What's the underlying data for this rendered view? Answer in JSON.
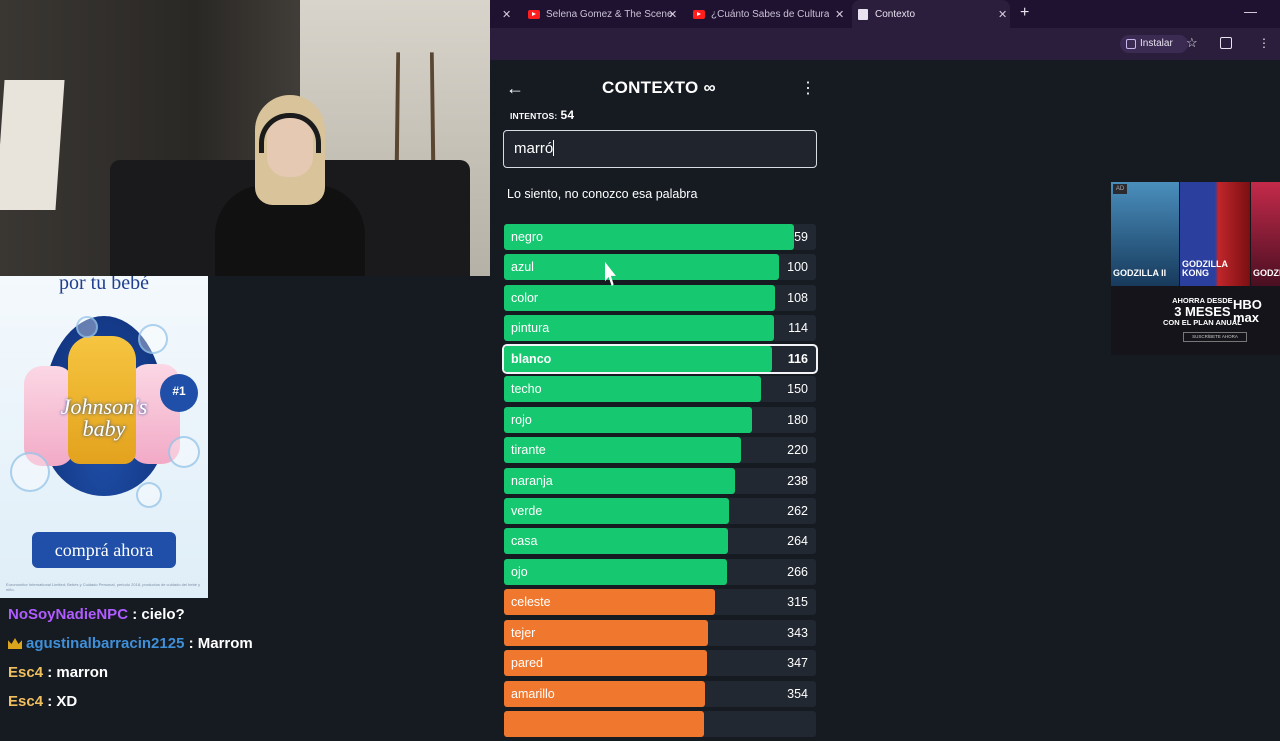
{
  "stream": {
    "ad_left": {
      "tagline": "por tu bebé",
      "brand": "Johnson's baby",
      "badge": "#1",
      "cta": "comprá ahora",
      "fine_print": "Euromonitor International Limited; Bebés y Cuidado Personal, periodo 2018, productos de cuidado del bebé y niño."
    },
    "chat": [
      {
        "user": "NoSoyNadieNPC",
        "text": ": cielo?",
        "color": "#b05cff",
        "badge": false
      },
      {
        "user": "agustinalbarracin2125",
        "text": ": Marrom",
        "color": "#3f8fd9",
        "badge": true
      },
      {
        "user": "Esc4",
        "text": ": marron",
        "color": "#f0c060",
        "badge": false
      },
      {
        "user": "Esc4",
        "text": ": XD",
        "color": "#f0c060",
        "badge": false
      }
    ]
  },
  "browser": {
    "tabs": [
      {
        "title": "Selena Gomez & The Scene - Lo",
        "icon": "youtube-icon",
        "active": false
      },
      {
        "title": "¿Cuánto Sabes de Cultura Gene",
        "icon": "youtube-icon",
        "active": false
      },
      {
        "title": "Contexto",
        "icon": "page-icon",
        "active": true
      }
    ],
    "install_label": "Instalar"
  },
  "game": {
    "title": "CONTEXTO ∞",
    "attempts_label": "INTENTOS:",
    "attempts": "54",
    "input_value": "marró",
    "message": "Lo siento, no conozco esa palabra",
    "colors": {
      "green": "#16c86f",
      "orange": "#f0782e",
      "track": "#222831"
    },
    "guesses": [
      {
        "word": "negro",
        "rank": "59",
        "color": "green",
        "fill": 0.93
      },
      {
        "word": "azul",
        "rank": "100",
        "color": "green",
        "fill": 0.88
      },
      {
        "word": "color",
        "rank": "108",
        "color": "green",
        "fill": 0.87
      },
      {
        "word": "pintura",
        "rank": "114",
        "color": "green",
        "fill": 0.865
      },
      {
        "word": "blanco",
        "rank": "116",
        "color": "green",
        "fill": 0.86,
        "current": true
      },
      {
        "word": "techo",
        "rank": "150",
        "color": "green",
        "fill": 0.825
      },
      {
        "word": "rojo",
        "rank": "180",
        "color": "green",
        "fill": 0.795
      },
      {
        "word": "tirante",
        "rank": "220",
        "color": "green",
        "fill": 0.76
      },
      {
        "word": "naranja",
        "rank": "238",
        "color": "green",
        "fill": 0.74
      },
      {
        "word": "verde",
        "rank": "262",
        "color": "green",
        "fill": 0.72
      },
      {
        "word": "casa",
        "rank": "264",
        "color": "green",
        "fill": 0.718
      },
      {
        "word": "ojo",
        "rank": "266",
        "color": "green",
        "fill": 0.716
      },
      {
        "word": "celeste",
        "rank": "315",
        "color": "orange",
        "fill": 0.675
      },
      {
        "word": "tejer",
        "rank": "343",
        "color": "orange",
        "fill": 0.655
      },
      {
        "word": "pared",
        "rank": "347",
        "color": "orange",
        "fill": 0.65
      },
      {
        "word": "amarillo",
        "rank": "354",
        "color": "orange",
        "fill": 0.645
      },
      {
        "word": "",
        "rank": "",
        "color": "orange",
        "fill": 0.64
      }
    ]
  },
  "ad_right": {
    "tag": "AD",
    "posters": [
      "GODZILLA II",
      "GODZILLA KONG",
      "GODZILLA"
    ],
    "promo_top": "AHORRA DESDE",
    "promo_big": "3 MESES",
    "promo_bottom": "CON EL PLAN ANUAL",
    "brand": "HBO max",
    "cta": "SUSCRÍBETE AHORA"
  }
}
